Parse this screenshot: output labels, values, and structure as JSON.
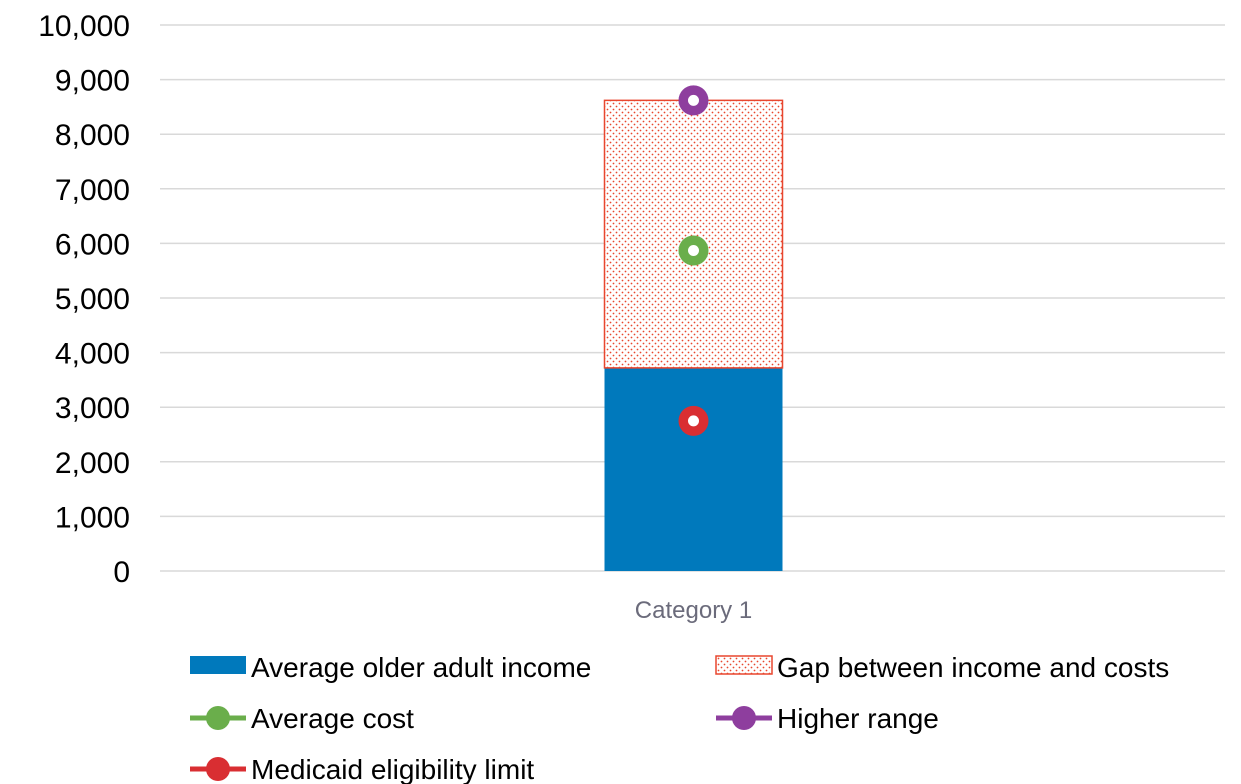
{
  "chart_data": {
    "type": "bar",
    "stacked": true,
    "categories": [
      "Category 1"
    ],
    "ylim": [
      0,
      10000
    ],
    "yticks": [
      0,
      1000,
      2000,
      3000,
      4000,
      5000,
      6000,
      7000,
      8000,
      9000,
      10000
    ],
    "ytick_labels": [
      "0",
      "1,000",
      "2,000",
      "3,000",
      "4,000",
      "5,000",
      "6,000",
      "7,000",
      "8,000",
      "9,000",
      "10,000"
    ],
    "grid": true,
    "legend_position": "bottom",
    "bar_series": [
      {
        "name": "Average older adult income",
        "values": [
          3720
        ],
        "color": "#0079BC",
        "fill": "solid"
      },
      {
        "name": "Gap between income and costs",
        "values": [
          4900
        ],
        "color": "#E8472F",
        "fill": "dotted"
      }
    ],
    "line_series": [
      {
        "name": "Average cost",
        "values": [
          5870
        ],
        "color": "#6AAE4B"
      },
      {
        "name": "Higher range",
        "values": [
          8620
        ],
        "color": "#8E3E9E"
      },
      {
        "name": "Medicaid eligibility limit",
        "values": [
          2750
        ],
        "color": "#D92E32"
      }
    ],
    "legend": [
      "Average older adult income",
      "Gap between income and costs",
      "Average cost",
      "Higher range",
      "Medicaid eligibility limit"
    ]
  }
}
